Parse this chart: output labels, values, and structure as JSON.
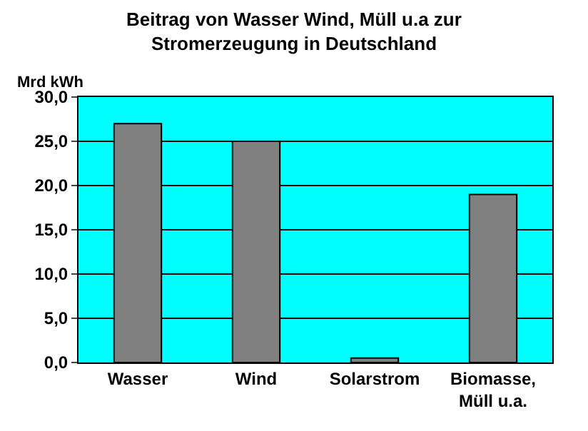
{
  "chart_data": {
    "type": "bar",
    "title": "Beitrag von Wasser Wind, Müll u.a zur\nStromerzeugung in Deutschland",
    "ylabel": "Mrd kWh",
    "categories": [
      "Wasser",
      "Wind",
      "Solarstrom",
      "Biomasse,\nMüll u.a."
    ],
    "values": [
      27,
      25,
      0.5,
      19
    ],
    "color": "#808080",
    "ylim": [
      0,
      30
    ],
    "yticks": [
      {
        "value": 0,
        "label": "0,0"
      },
      {
        "value": 5,
        "label": "5,0"
      },
      {
        "value": 10,
        "label": "10,0"
      },
      {
        "value": 15,
        "label": "15,0"
      },
      {
        "value": 20,
        "label": "20,0"
      },
      {
        "value": 25,
        "label": "25,0"
      },
      {
        "value": 30,
        "label": "30,0"
      }
    ],
    "grid": "y"
  }
}
